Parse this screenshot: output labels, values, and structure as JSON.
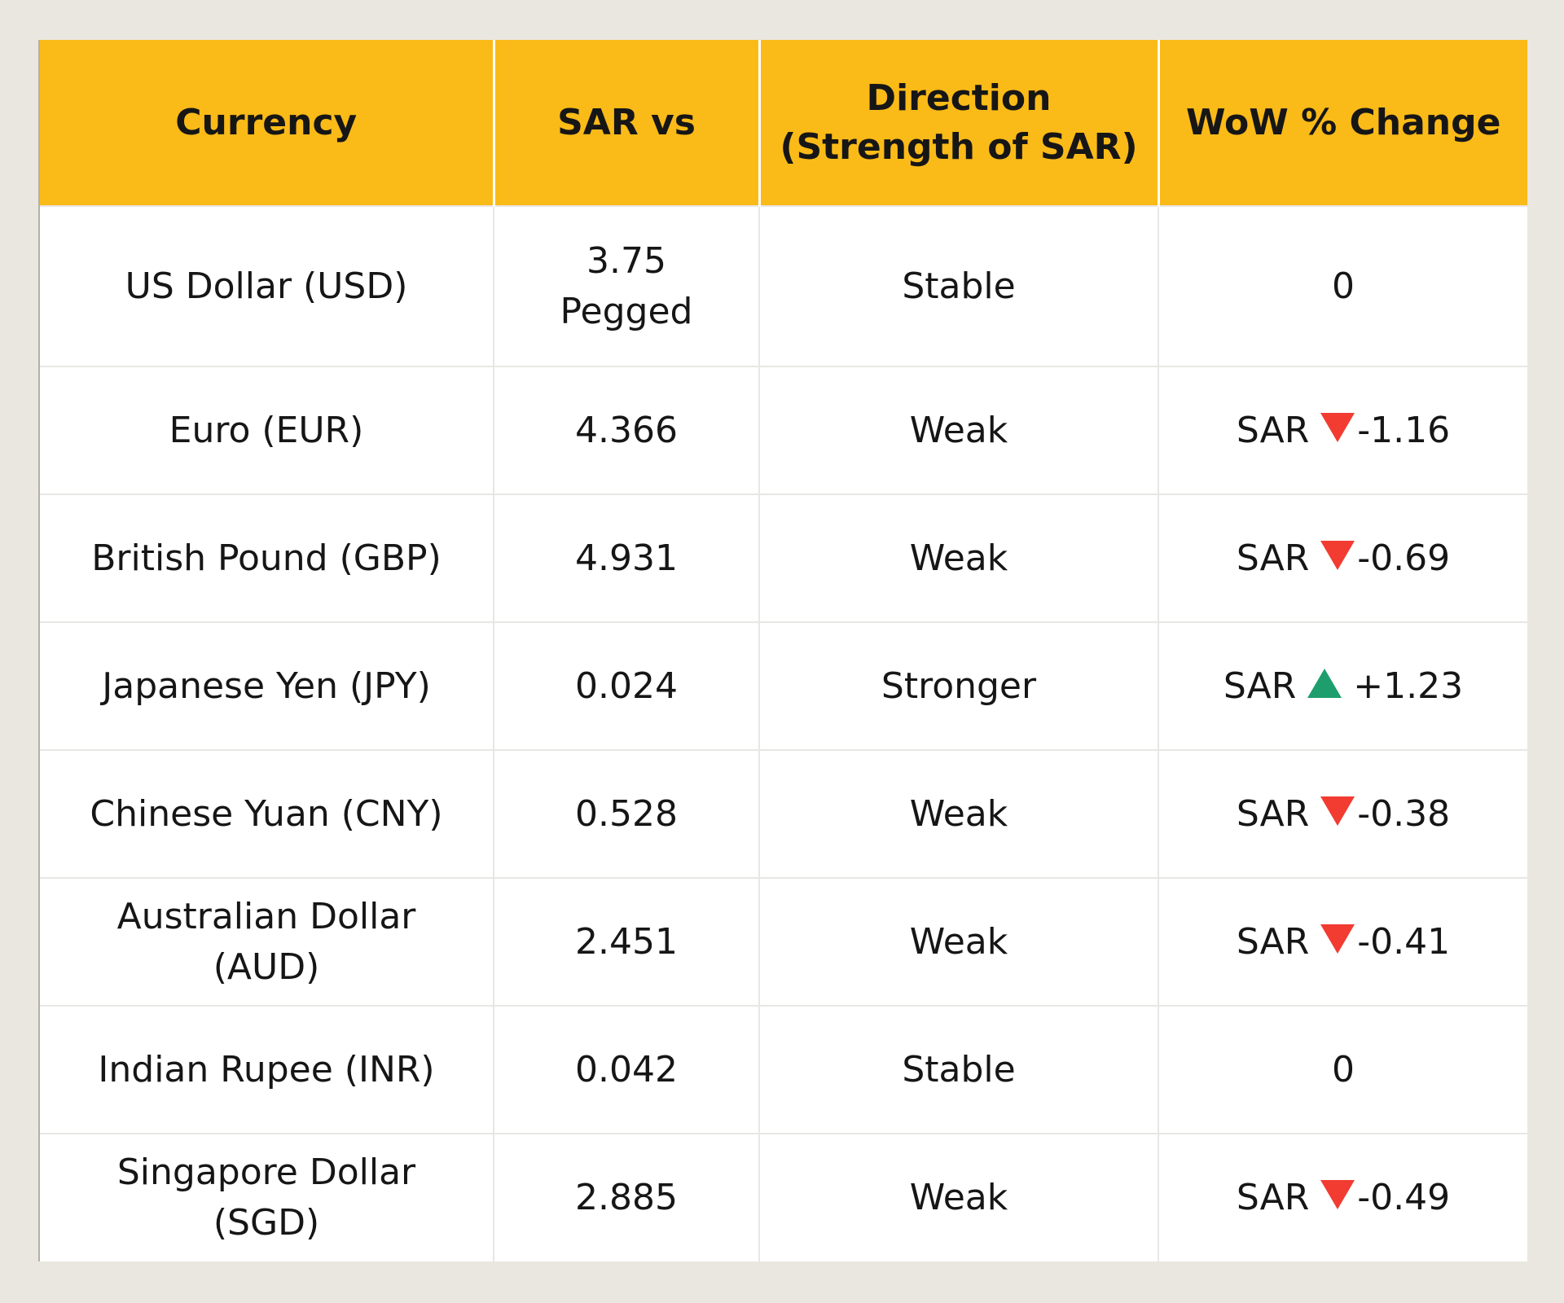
{
  "colors": {
    "header_bg": "#FABA18",
    "page_bg": "#EAE7E0",
    "row_bg": "#FFFFFF",
    "up_green": "#1E9E6D",
    "down_red": "#F23C32",
    "text": "#161616"
  },
  "table": {
    "headers": [
      {
        "id": "currency",
        "label": "Currency"
      },
      {
        "id": "rate",
        "label": "SAR vs"
      },
      {
        "id": "direction",
        "label": "Direction\n(Strength of SAR)"
      },
      {
        "id": "wow",
        "label": "WoW % Change"
      }
    ],
    "rows": [
      {
        "currency": "US Dollar (USD)",
        "rate": "3.75\nPegged",
        "direction": "Stable",
        "wow": {
          "prefix": "",
          "arrow": "none",
          "value": "0"
        }
      },
      {
        "currency": "Euro (EUR)",
        "rate": "4.366",
        "direction": "Weak",
        "wow": {
          "prefix": "SAR",
          "arrow": "down",
          "value": "-1.16"
        }
      },
      {
        "currency": "British Pound (GBP)",
        "rate": "4.931",
        "direction": "Weak",
        "wow": {
          "prefix": "SAR",
          "arrow": "down",
          "value": "-0.69"
        }
      },
      {
        "currency": "Japanese Yen (JPY)",
        "rate": "0.024",
        "direction": "Stronger",
        "wow": {
          "prefix": "SAR",
          "arrow": "up",
          "value": "+1.23"
        }
      },
      {
        "currency": "Chinese Yuan (CNY)",
        "rate": "0.528",
        "direction": "Weak",
        "wow": {
          "prefix": "SAR",
          "arrow": "down",
          "value": "-0.38"
        }
      },
      {
        "currency": "Australian Dollar\n(AUD)",
        "rate": "2.451",
        "direction": "Weak",
        "wow": {
          "prefix": "SAR",
          "arrow": "down",
          "value": "-0.41"
        }
      },
      {
        "currency": "Indian Rupee (INR)",
        "rate": "0.042",
        "direction": "Stable",
        "wow": {
          "prefix": "",
          "arrow": "none",
          "value": "0"
        }
      },
      {
        "currency": "Singapore Dollar\n(SGD)",
        "rate": "2.885",
        "direction": "Weak",
        "wow": {
          "prefix": "SAR",
          "arrow": "down",
          "value": "-0.49"
        }
      }
    ]
  }
}
